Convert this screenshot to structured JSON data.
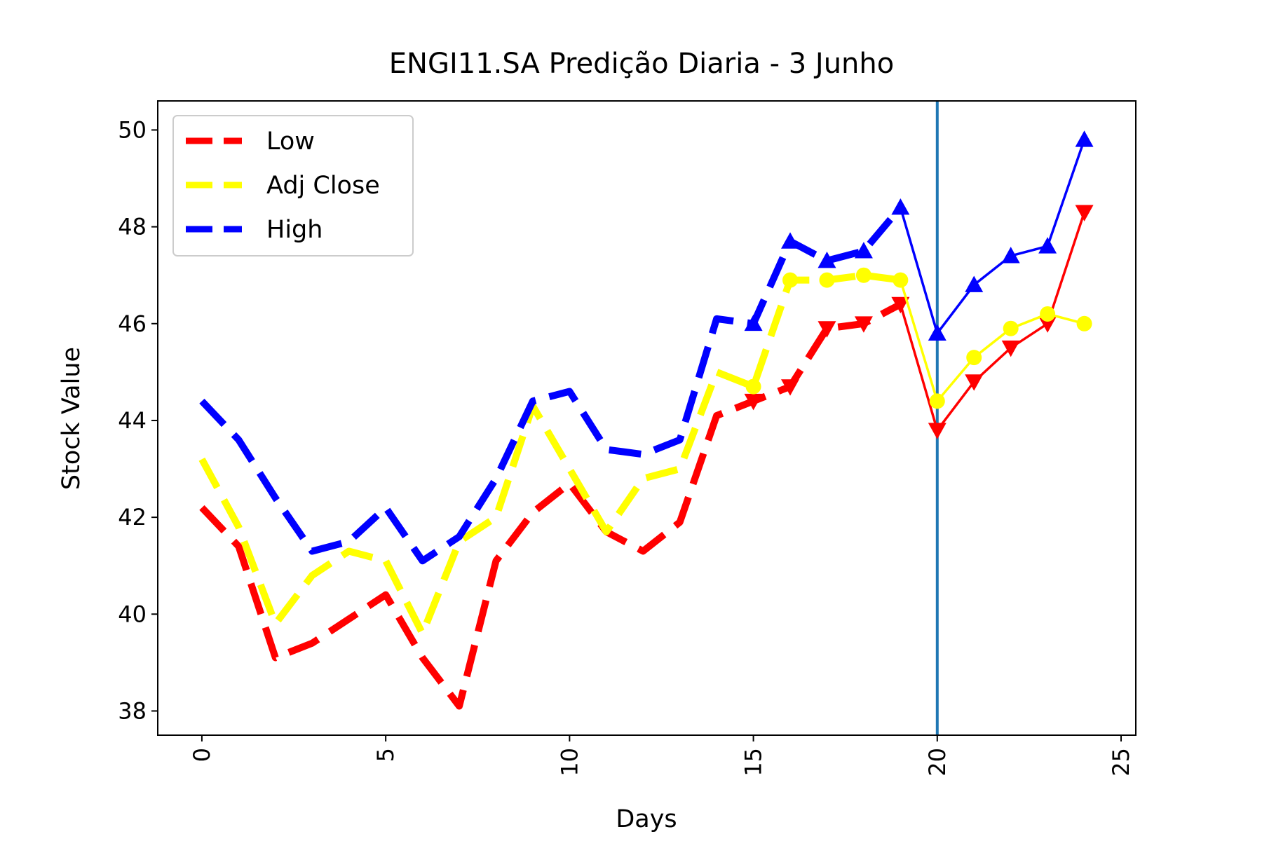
{
  "chart_data": {
    "type": "line",
    "title": "ENGI11.SA Predição Diaria - 3 Junho",
    "xlabel": "Days",
    "ylabel": "Stock Value",
    "xlim": [
      -1.2,
      25.4
    ],
    "ylim": [
      37.5,
      50.6
    ],
    "xticks": [
      0,
      5,
      10,
      15,
      20,
      25
    ],
    "yticks": [
      38,
      40,
      42,
      44,
      46,
      48,
      50
    ],
    "xtick_rotation": 90,
    "grid": false,
    "legend": {
      "position": "top-left",
      "entries": [
        "Low",
        "Adj Close",
        "High"
      ]
    },
    "prediction_line": {
      "x": 20,
      "color": "#1f77b4"
    },
    "series": [
      {
        "name": "Low",
        "color": "#ff0000",
        "marker": "triangle-down",
        "historical": {
          "x": [
            0,
            1,
            2,
            3,
            4,
            5,
            6,
            7,
            8,
            9,
            10,
            11,
            12,
            13,
            14,
            15,
            16,
            17,
            18,
            19
          ],
          "y": [
            42.2,
            41.4,
            39.1,
            39.4,
            39.9,
            40.4,
            39.1,
            38.1,
            41.1,
            42.1,
            42.7,
            41.7,
            41.3,
            41.9,
            44.1,
            44.4,
            44.7,
            45.9,
            46.0,
            46.4
          ]
        },
        "predicted": {
          "x": [
            20,
            21,
            22,
            23,
            24
          ],
          "y": [
            43.8,
            44.8,
            45.5,
            46.0,
            48.3
          ]
        }
      },
      {
        "name": "Adj Close",
        "color": "#ffff00",
        "marker": "circle",
        "historical": {
          "x": [
            0,
            1,
            2,
            3,
            4,
            5,
            6,
            7,
            8,
            9,
            10,
            11,
            12,
            13,
            14,
            15,
            16,
            17,
            18,
            19
          ],
          "y": [
            43.2,
            41.8,
            39.8,
            40.8,
            41.3,
            41.1,
            39.6,
            41.5,
            42.0,
            44.3,
            43.0,
            41.7,
            42.8,
            43.0,
            45.0,
            44.7,
            46.9,
            46.9,
            47.0,
            46.9
          ]
        },
        "predicted": {
          "x": [
            20,
            21,
            22,
            23,
            24
          ],
          "y": [
            44.4,
            45.3,
            45.9,
            46.2,
            46.0
          ]
        }
      },
      {
        "name": "High",
        "color": "#0000ff",
        "marker": "triangle-up",
        "historical": {
          "x": [
            0,
            1,
            2,
            3,
            4,
            5,
            6,
            7,
            8,
            9,
            10,
            11,
            12,
            13,
            14,
            15,
            16,
            17,
            18,
            19
          ],
          "y": [
            44.4,
            43.6,
            42.4,
            41.3,
            41.5,
            42.2,
            41.1,
            41.6,
            42.8,
            44.4,
            44.6,
            43.4,
            43.3,
            43.6,
            46.1,
            46.0,
            47.7,
            47.3,
            47.5,
            48.4
          ]
        },
        "predicted": {
          "x": [
            20,
            21,
            22,
            23,
            24
          ],
          "y": [
            45.8,
            46.8,
            47.4,
            47.6,
            49.8
          ]
        }
      }
    ]
  }
}
